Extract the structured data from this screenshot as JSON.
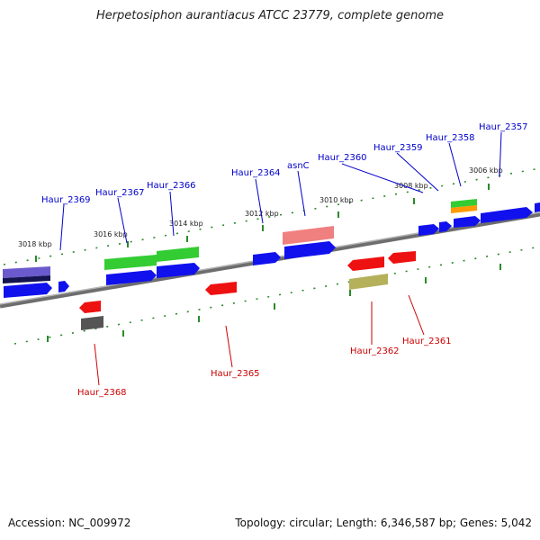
{
  "title": "Herpetosiphon aurantiacus ATCC 23779, complete genome",
  "footer": {
    "accession": "Accession: NC_009972",
    "summary": "Topology: circular; Length: 6,346,587 bp; Genes: 5,042"
  },
  "colors": {
    "backbone": "#8c8c8c",
    "tick": "#2a8a2a",
    "forward_label": "#0000cc",
    "reverse_label": "#cc0000"
  },
  "ruler": [
    "3018 kbp",
    "3016 kbp",
    "3014 kbp",
    "3012 kbp",
    "3010 kbp",
    "3008 kbp",
    "3006 kbp"
  ],
  "gene_labels": {
    "forward": [
      "Haur_2369",
      "Haur_2367",
      "Haur_2366",
      "Haur_2364",
      "asnC",
      "Haur_2360",
      "Haur_2359",
      "Haur_2358",
      "Haur_2357"
    ],
    "reverse": [
      "Haur_2368",
      "Haur_2365",
      "Haur_2362",
      "Haur_2361"
    ]
  }
}
